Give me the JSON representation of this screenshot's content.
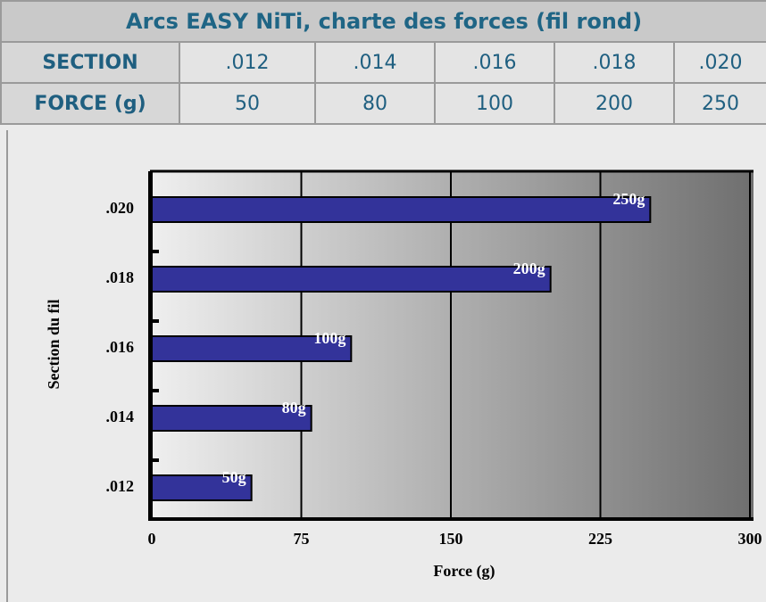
{
  "table": {
    "title": "Arcs EASY NiTi, charte des forces (fil rond)",
    "rows": [
      [
        "SECTION",
        ".012",
        ".014",
        ".016",
        ".018",
        ".020"
      ],
      [
        "FORCE (g)",
        "50",
        "80",
        "100",
        "200",
        "250"
      ]
    ]
  },
  "chart_data": {
    "type": "bar",
    "orientation": "horizontal",
    "ylabel": "Section du fil",
    "xlabel": "Force (g)",
    "categories": [
      ".012",
      ".014",
      ".016",
      ".018",
      ".020"
    ],
    "values": [
      50,
      80,
      100,
      200,
      250
    ],
    "value_labels": [
      "50g",
      "80g",
      "100g",
      "200g",
      "250g"
    ],
    "color": "#33339a",
    "xlim": [
      0,
      300
    ],
    "xticks": [
      0,
      75,
      150,
      225,
      300
    ],
    "grid": true
  }
}
